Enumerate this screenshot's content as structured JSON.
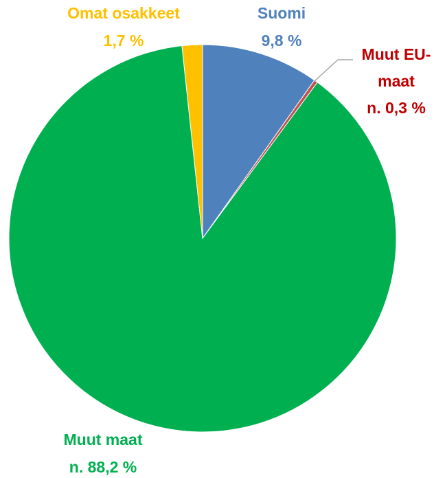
{
  "chart_data": {
    "type": "pie",
    "slices": [
      {
        "key": "suomi",
        "line1": "Suomi",
        "line2": "9,8 %",
        "value": 9.8,
        "color": "#4f81bd"
      },
      {
        "key": "muut-eu-maat",
        "line1": "Muut EU-",
        "line2": "maat",
        "line3": "n. 0,3 %",
        "value": 0.3,
        "color": "#c0504d",
        "label_color": "#c00000"
      },
      {
        "key": "muut-maat",
        "line1": "Muut maat",
        "line2": "n. 88,2 %",
        "value": 88.2,
        "color": "#00b050"
      },
      {
        "key": "omat-osakkeet",
        "line1": "Omat osakkeet",
        "line2": "1,7 %",
        "value": 1.7,
        "color": "#ffc000"
      }
    ]
  }
}
